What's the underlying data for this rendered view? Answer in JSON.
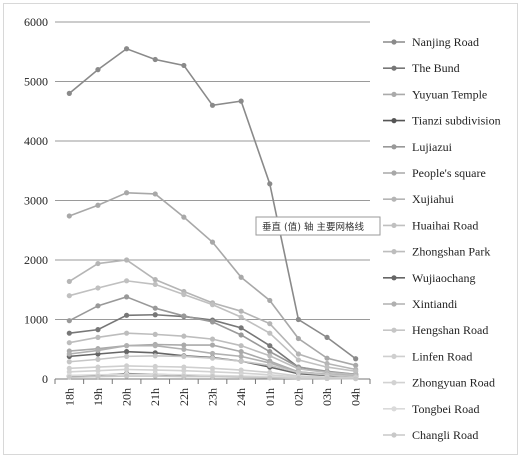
{
  "chart_data": {
    "type": "line",
    "title": "",
    "xlabel": "",
    "ylabel": "",
    "ylim": [
      0,
      6000
    ],
    "y_ticks": [
      "0",
      "1000",
      "2000",
      "3000",
      "4000",
      "5000",
      "6000"
    ],
    "grid": "horizontal",
    "legend_position": "right",
    "categories": [
      "18h",
      "19h",
      "20h",
      "21h",
      "22h",
      "23h",
      "24h",
      "01h",
      "02h",
      "03h",
      "04h"
    ],
    "series": [
      {
        "name": "Nanjing Road",
        "color": "#8a8a8a",
        "values": [
          4800,
          5200,
          5550,
          5370,
          5270,
          4600,
          4670,
          3280,
          1000,
          700,
          340
        ]
      },
      {
        "name": "The Bund",
        "color": "#777777",
        "values": [
          770,
          830,
          1070,
          1080,
          1050,
          990,
          860,
          560,
          200,
          120,
          80
        ]
      },
      {
        "name": "Yuyuan Temple",
        "color": "#aaaaaa",
        "values": [
          470,
          510,
          560,
          580,
          570,
          570,
          460,
          300,
          120,
          80,
          50
        ]
      },
      {
        "name": "Tianzi subdivision",
        "color": "#555555",
        "values": [
          50,
          60,
          90,
          80,
          60,
          50,
          40,
          30,
          20,
          10,
          10
        ]
      },
      {
        "name": "Lujiazui",
        "color": "#999999",
        "values": [
          980,
          1230,
          1380,
          1190,
          1060,
          960,
          740,
          460,
          200,
          130,
          80
        ]
      },
      {
        "name": "People's square",
        "color": "#a8a8a8",
        "values": [
          2740,
          2920,
          3130,
          3110,
          2720,
          2300,
          1710,
          1320,
          680,
          350,
          230
        ]
      },
      {
        "name": "Xujiahui",
        "color": "#b5b5b5",
        "values": [
          1640,
          1940,
          2000,
          1670,
          1470,
          1280,
          1140,
          930,
          420,
          260,
          160
        ]
      },
      {
        "name": "Huaihai Road",
        "color": "#c0c0c0",
        "values": [
          1400,
          1530,
          1650,
          1590,
          1420,
          1250,
          1040,
          770,
          320,
          200,
          130
        ]
      },
      {
        "name": "Zhongshan Park",
        "color": "#bdbdbd",
        "values": [
          610,
          700,
          770,
          750,
          720,
          670,
          560,
          390,
          170,
          110,
          70
        ]
      },
      {
        "name": "Wujiaochang",
        "color": "#666666",
        "values": [
          380,
          420,
          460,
          440,
          390,
          360,
          300,
          200,
          90,
          60,
          40
        ]
      },
      {
        "name": "Xintiandi",
        "color": "#b0b0b0",
        "values": [
          420,
          480,
          560,
          560,
          500,
          430,
          380,
          270,
          120,
          80,
          50
        ]
      },
      {
        "name": "Hengshan Road",
        "color": "#c6c6c6",
        "values": [
          290,
          330,
          380,
          390,
          380,
          350,
          300,
          230,
          110,
          70,
          40
        ]
      },
      {
        "name": "Linfen Road",
        "color": "#cfcfcf",
        "values": [
          180,
          200,
          220,
          210,
          200,
          180,
          150,
          110,
          50,
          30,
          20
        ]
      },
      {
        "name": "Zhongyuan Road",
        "color": "#d2d2d2",
        "values": [
          120,
          140,
          160,
          150,
          140,
          120,
          100,
          70,
          30,
          20,
          10
        ]
      },
      {
        "name": "Tongbei Road",
        "color": "#dadada",
        "values": [
          60,
          70,
          80,
          80,
          70,
          60,
          50,
          40,
          20,
          10,
          10
        ]
      },
      {
        "name": "Changli Road",
        "color": "#c8c8c8",
        "values": [
          30,
          40,
          50,
          50,
          40,
          40,
          30,
          20,
          10,
          10,
          5
        ]
      }
    ]
  },
  "tooltip": {
    "text": "垂直 (值) 轴 主要网格线"
  }
}
